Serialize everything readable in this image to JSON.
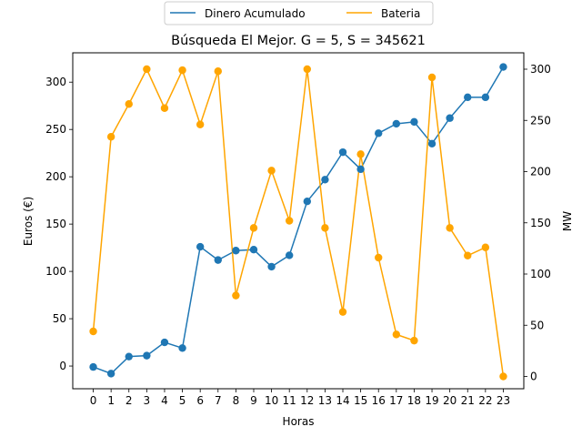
{
  "chart_data": {
    "type": "line",
    "title": "Búsqueda El Mejor. G = 5, S = 345621",
    "xlabel": "Horas",
    "ylabel": "Euros (€)",
    "y2label": "MW",
    "x": [
      0,
      1,
      2,
      3,
      4,
      5,
      6,
      7,
      8,
      9,
      10,
      11,
      12,
      13,
      14,
      15,
      16,
      17,
      18,
      19,
      20,
      21,
      22,
      23
    ],
    "xlim": [
      -1.15,
      24.15
    ],
    "ylim": [
      -24,
      331
    ],
    "y2lim": [
      -12,
      316
    ],
    "yticks": [
      0,
      50,
      100,
      150,
      200,
      250,
      300
    ],
    "y2ticks": [
      0,
      50,
      100,
      150,
      200,
      250,
      300
    ],
    "legend_position": "top-center",
    "series": [
      {
        "name": "Dinero Acumulado",
        "axis": "left",
        "color": "#1f77b4",
        "values": [
          -1,
          -8,
          10,
          11,
          25,
          19,
          126,
          112,
          122,
          123,
          105,
          117,
          174,
          197,
          226,
          208,
          246,
          256,
          258,
          235,
          262,
          284,
          284,
          316
        ]
      },
      {
        "name": "Bateria",
        "axis": "right",
        "color": "#ffa500",
        "values": [
          44,
          234,
          266,
          300,
          262,
          299,
          246,
          298,
          79,
          145,
          201,
          152,
          300,
          145,
          63,
          217,
          116,
          41,
          35,
          292,
          145,
          118,
          126,
          0
        ]
      }
    ]
  }
}
